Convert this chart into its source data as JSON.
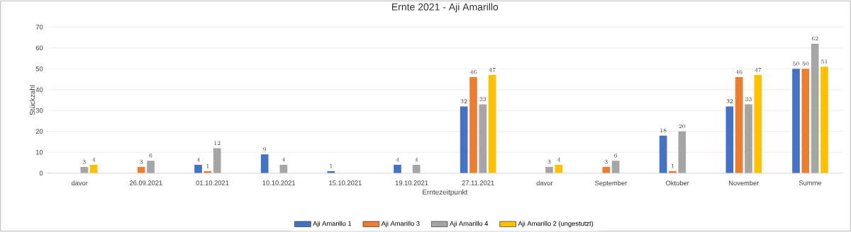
{
  "chart_data": {
    "type": "bar",
    "title": "Ernte 2021 - Aji Amarillo",
    "xlabel": "Erntezeitpunkt",
    "ylabel": "Stückzahl",
    "categories": [
      "davor",
      "26.09.2021",
      "01.10.2021",
      "10.10.2021",
      "15.10.2021",
      "19.10.2021",
      "27.11.2021",
      "davor",
      "September",
      "Oktober",
      "November",
      "Summe"
    ],
    "series": [
      {
        "name": "Aji Amarillo 1",
        "color": "#4472c4",
        "values": [
          null,
          null,
          4,
          9,
          1,
          4,
          32,
          null,
          null,
          18,
          32,
          50
        ]
      },
      {
        "name": "Aji Amarillo 3",
        "color": "#ed7d31",
        "values": [
          null,
          3,
          1,
          null,
          null,
          null,
          46,
          null,
          3,
          1,
          46,
          50
        ]
      },
      {
        "name": "Aji Amarillo 4",
        "color": "#a5a5a5",
        "values": [
          3,
          6,
          12,
          4,
          null,
          4,
          33,
          3,
          6,
          20,
          33,
          62
        ]
      },
      {
        "name": "Aji Amarillo 2 (ungestutzt)",
        "color": "#ffc000",
        "values": [
          4,
          null,
          null,
          null,
          null,
          null,
          47,
          4,
          null,
          null,
          47,
          51
        ]
      }
    ],
    "ylim": [
      0,
      70
    ],
    "yticks": [
      0,
      10,
      20,
      30,
      40,
      50,
      60,
      70
    ],
    "grid": "y",
    "legend": "bottom",
    "data_labels": true
  }
}
